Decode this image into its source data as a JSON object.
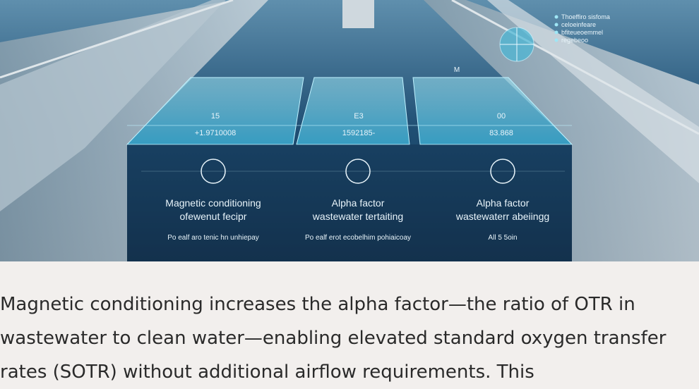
{
  "figure": {
    "legend": [
      "Thoeffiro sisfoma",
      "celoeinfeare",
      "bfiteueoemmel",
      "regebeoo"
    ],
    "marker": "M",
    "panels": [
      {
        "tick": "15",
        "reading": "+1.9710008",
        "title": "Magnetic conditioning",
        "subtitle": "ofewenut fecipr",
        "caption": "Po ealf aro tenic hn unhiepay"
      },
      {
        "tick": "E3",
        "reading": "1592185-",
        "title": "Alpha factor",
        "subtitle": "wastewater tertaiting",
        "caption": "Po ealf erot ecobelhim pohiaicoay"
      },
      {
        "tick": "00",
        "reading": "83.868",
        "title": "Alpha factor",
        "subtitle": "wastewaterr abeiingg",
        "caption": "All 5 5oin"
      }
    ]
  },
  "paragraph": "Magnetic conditioning increases the alpha factor—the ratio of OTR in wastewater to clean water—enabling elevated standard oxygen transfer rates (SOTR) without additional airflow requirements. This"
}
